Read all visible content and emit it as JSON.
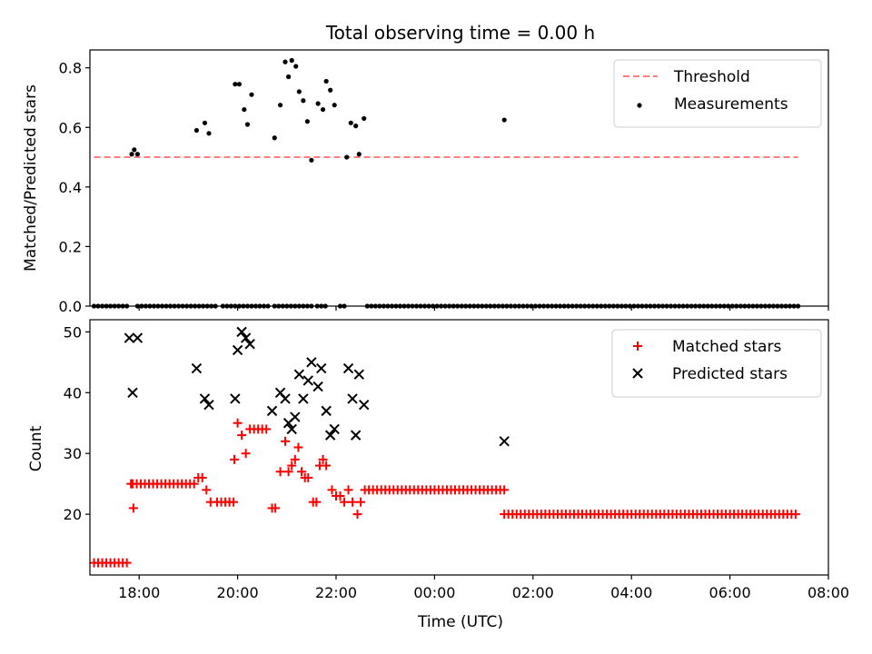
{
  "title": "Total observing time = 0.00 h",
  "chart_data": [
    {
      "type": "scatter",
      "ylabel": "Matched/Predicted stars",
      "xlabel": "",
      "xlim": [
        "17:00",
        "08:00"
      ],
      "ylim": [
        0,
        0.86
      ],
      "yticks": [
        "0.0",
        "0.2",
        "0.4",
        "0.6",
        "0.8"
      ],
      "legend_position": "top-right",
      "threshold": {
        "name": "Threshold",
        "y": 0.5,
        "x_range": [
          "17:05",
          "07:23"
        ],
        "color": "#ff7f7f",
        "style": "dashed"
      },
      "series": [
        {
          "name": "Measurements",
          "color": "#000000",
          "marker": "dot",
          "points": [
            [
              "17:51",
              0.51
            ],
            [
              "17:54",
              0.525
            ],
            [
              "17:58",
              0.51
            ],
            [
              "19:10",
              0.59
            ],
            [
              "19:20",
              0.615
            ],
            [
              "19:25",
              0.58
            ],
            [
              "19:57",
              0.745
            ],
            [
              "20:02",
              0.745
            ],
            [
              "20:08",
              0.66
            ],
            [
              "20:12",
              0.61
            ],
            [
              "20:17",
              0.71
            ],
            [
              "20:45",
              0.565
            ],
            [
              "20:52",
              0.675
            ],
            [
              "20:58",
              0.82
            ],
            [
              "21:02",
              0.77
            ],
            [
              "21:06",
              0.825
            ],
            [
              "21:11",
              0.805
            ],
            [
              "21:15",
              0.72
            ],
            [
              "21:20",
              0.69
            ],
            [
              "21:25",
              0.62
            ],
            [
              "21:30",
              0.49
            ],
            [
              "21:38",
              0.68
            ],
            [
              "21:44",
              0.66
            ],
            [
              "21:48",
              0.755
            ],
            [
              "21:53",
              0.725
            ],
            [
              "21:58",
              0.675
            ],
            [
              "22:13",
              0.5
            ],
            [
              "22:18",
              0.615
            ],
            [
              "22:24",
              0.605
            ],
            [
              "22:28",
              0.51
            ],
            [
              "22:34",
              0.63
            ],
            [
              "01:25",
              0.625
            ]
          ],
          "zero_ranges": [
            [
              "17:05",
              "17:45"
            ],
            [
              "17:58",
              "19:35"
            ],
            [
              "19:42",
              "20:38"
            ],
            [
              "20:45",
              "21:30"
            ],
            [
              "21:37",
              "21:50"
            ],
            [
              "22:05",
              "22:12"
            ],
            [
              "22:38",
              "07:23"
            ]
          ],
          "zero_value": 0
        }
      ]
    },
    {
      "type": "scatter",
      "ylabel": "Count",
      "xlabel": "Time (UTC)",
      "xlim": [
        "17:00",
        "08:00"
      ],
      "ylim": [
        10,
        52
      ],
      "yticks": [
        "20",
        "30",
        "40",
        "50"
      ],
      "xticks": [
        "18:00",
        "20:00",
        "22:00",
        "00:00",
        "02:00",
        "04:00",
        "06:00",
        "08:00"
      ],
      "legend_position": "top-right",
      "series": [
        {
          "name": "Matched stars",
          "color": "#ff0000",
          "marker": "plus",
          "runs": [
            {
              "from": "17:05",
              "to": "17:45",
              "value": 12
            },
            {
              "from": "17:52",
              "to": "19:10",
              "value": 25
            },
            {
              "from": "19:35",
              "to": "19:55",
              "value": 22
            },
            {
              "from": "22:40",
              "to": "01:25",
              "value": 24
            },
            {
              "from": "01:25",
              "to": "07:23",
              "value": 20
            }
          ],
          "points": [
            [
              "17:50",
              25
            ],
            [
              "17:53",
              21
            ],
            [
              "19:12",
              26
            ],
            [
              "19:17",
              26
            ],
            [
              "19:22",
              24
            ],
            [
              "19:27",
              22
            ],
            [
              "19:56",
              29
            ],
            [
              "20:00",
              35
            ],
            [
              "20:05",
              33
            ],
            [
              "20:10",
              30
            ],
            [
              "20:15",
              34
            ],
            [
              "20:20",
              34
            ],
            [
              "20:25",
              34
            ],
            [
              "20:30",
              34
            ],
            [
              "20:35",
              34
            ],
            [
              "20:42",
              21
            ],
            [
              "20:46",
              21
            ],
            [
              "20:52",
              27
            ],
            [
              "20:58",
              32
            ],
            [
              "21:02",
              27
            ],
            [
              "21:06",
              28
            ],
            [
              "21:10",
              29
            ],
            [
              "21:14",
              31
            ],
            [
              "21:18",
              27
            ],
            [
              "21:22",
              26
            ],
            [
              "21:26",
              26
            ],
            [
              "21:32",
              22
            ],
            [
              "21:36",
              22
            ],
            [
              "21:40",
              28
            ],
            [
              "21:44",
              29
            ],
            [
              "21:48",
              28
            ],
            [
              "21:55",
              24
            ],
            [
              "22:00",
              23
            ],
            [
              "22:05",
              23
            ],
            [
              "22:10",
              22
            ],
            [
              "22:15",
              24
            ],
            [
              "22:20",
              22
            ],
            [
              "22:26",
              20
            ],
            [
              "22:30",
              22
            ],
            [
              "22:35",
              24
            ]
          ]
        },
        {
          "name": "Predicted stars",
          "color": "#000000",
          "marker": "x",
          "points": [
            [
              "17:48",
              49
            ],
            [
              "17:52",
              40
            ],
            [
              "17:58",
              49
            ],
            [
              "19:10",
              44
            ],
            [
              "19:20",
              39
            ],
            [
              "19:25",
              38
            ],
            [
              "19:57",
              39
            ],
            [
              "20:00",
              47
            ],
            [
              "20:05",
              50
            ],
            [
              "20:10",
              49
            ],
            [
              "20:15",
              48
            ],
            [
              "20:42",
              37
            ],
            [
              "20:52",
              40
            ],
            [
              "20:58",
              39
            ],
            [
              "21:02",
              35
            ],
            [
              "21:06",
              34
            ],
            [
              "21:10",
              36
            ],
            [
              "21:15",
              43
            ],
            [
              "21:20",
              39
            ],
            [
              "21:26",
              42
            ],
            [
              "21:30",
              45
            ],
            [
              "21:38",
              41
            ],
            [
              "21:42",
              44
            ],
            [
              "21:48",
              37
            ],
            [
              "21:53",
              33
            ],
            [
              "21:58",
              34
            ],
            [
              "22:15",
              44
            ],
            [
              "22:20",
              39
            ],
            [
              "22:24",
              33
            ],
            [
              "22:28",
              43
            ],
            [
              "22:34",
              38
            ],
            [
              "01:25",
              32
            ]
          ]
        }
      ]
    }
  ]
}
